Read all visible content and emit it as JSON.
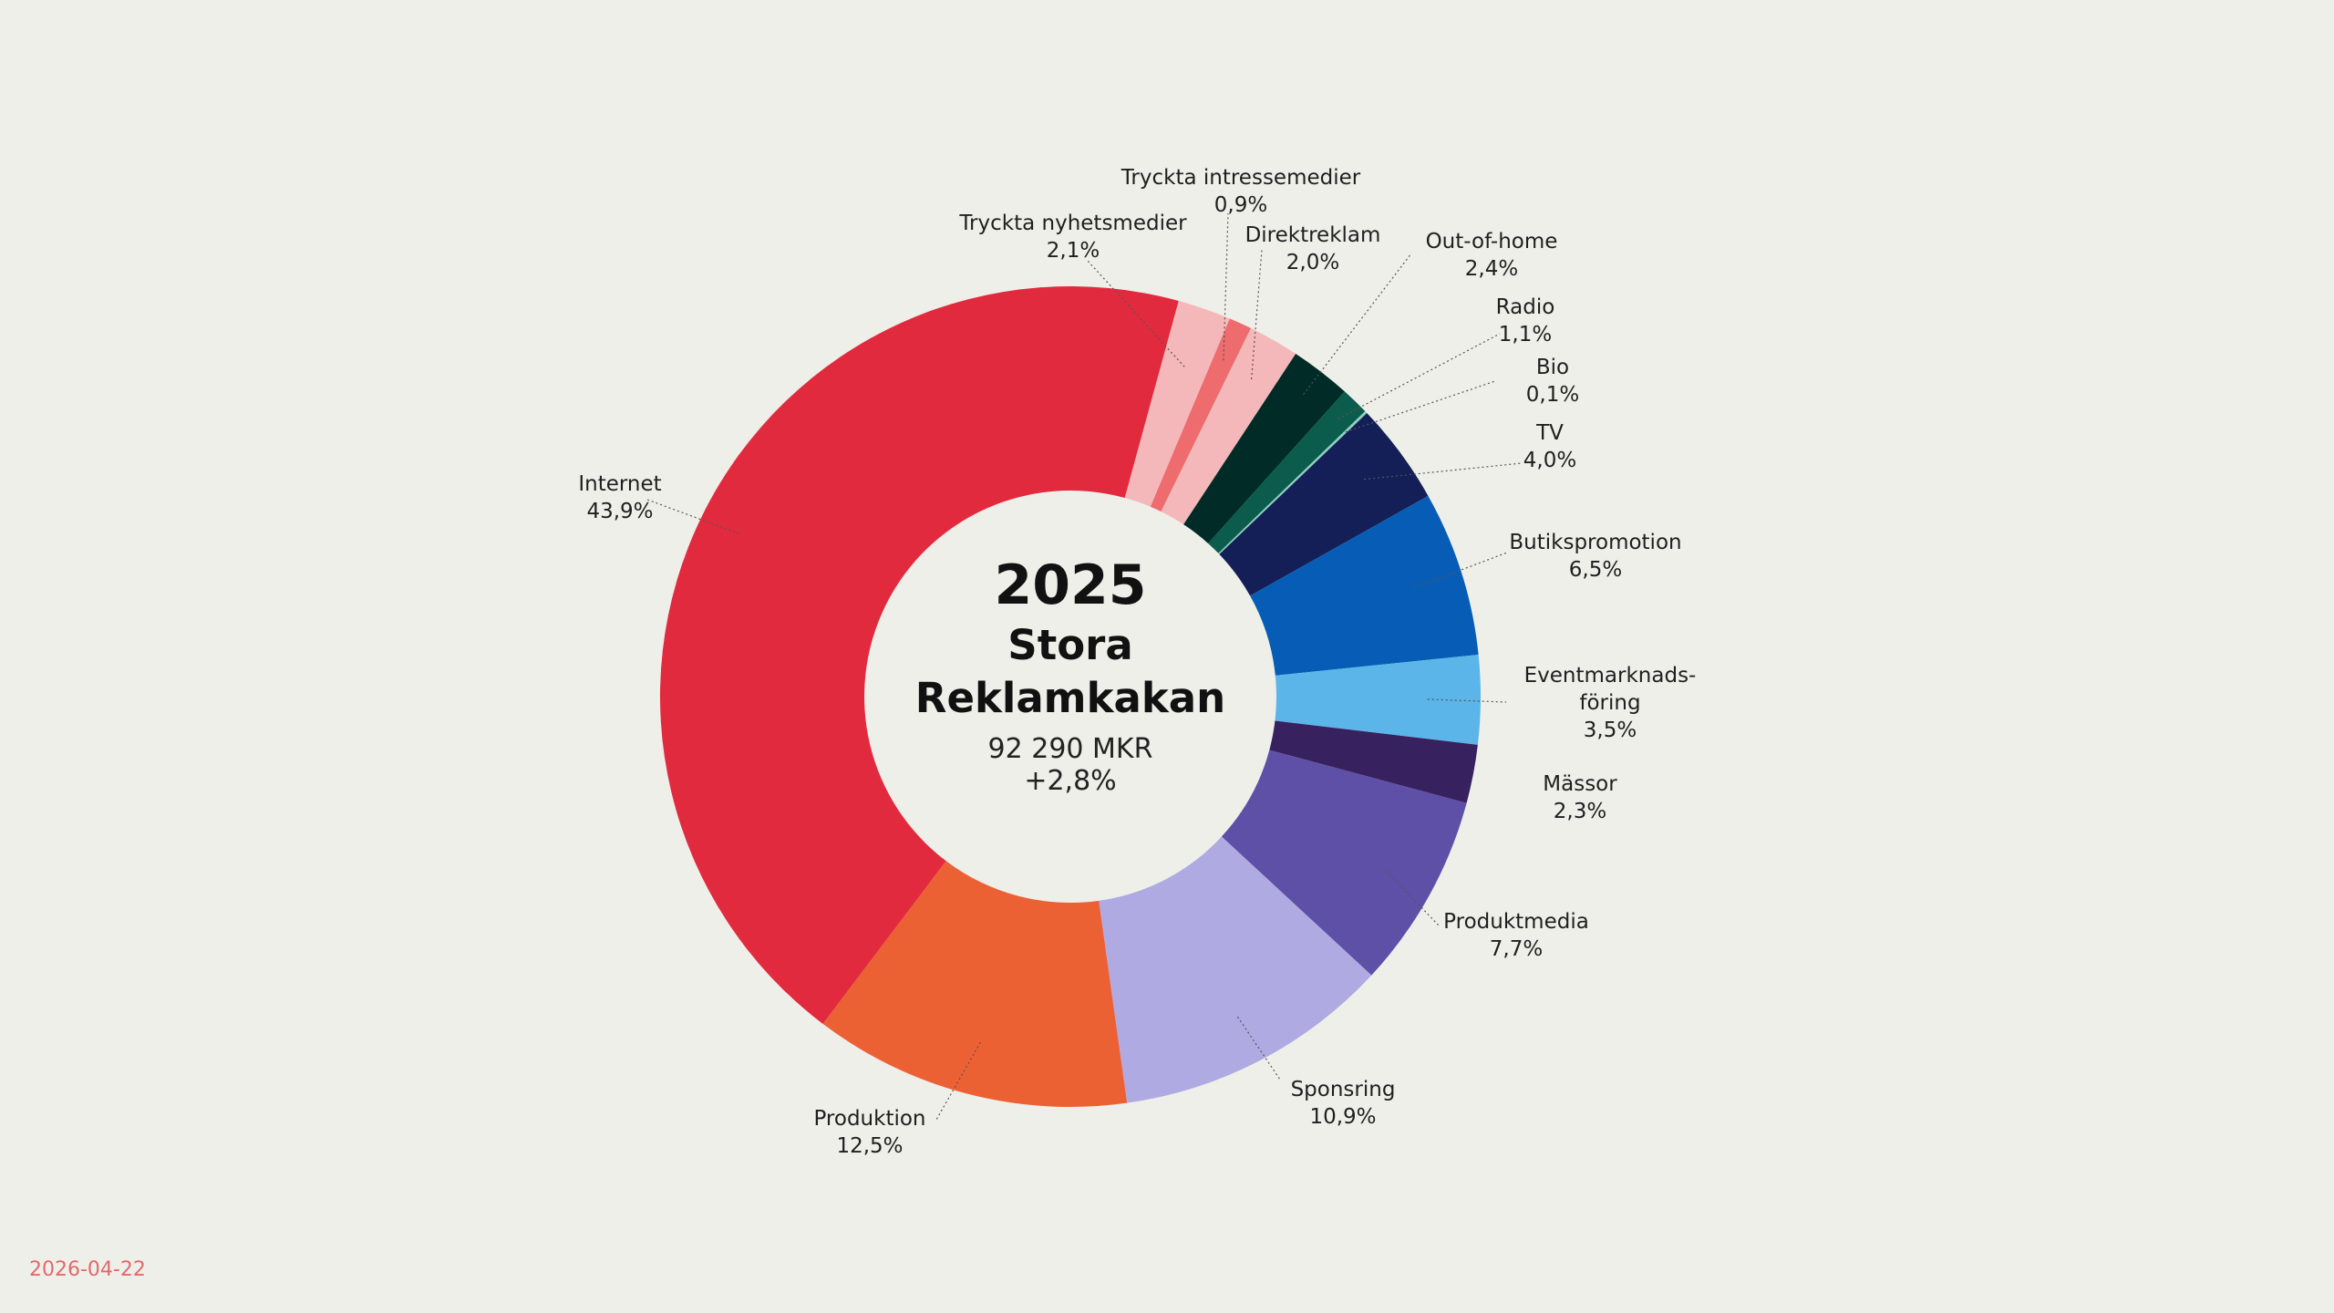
{
  "date": "2026-04-22",
  "center": {
    "year": "2025",
    "title_line1": "Stora",
    "title_line2": "Reklamkakan",
    "total": "92 290 MKR",
    "change": "+2,8%"
  },
  "chart_data": {
    "type": "pie",
    "subtype": "donut",
    "title": "2025 Stora Reklamkakan",
    "total_label": "92 290 MKR",
    "change_label": "+2,8%",
    "unit": "percent of total",
    "slices": [
      {
        "id": "tryckta-nyhetsmedier",
        "label": [
          "Tryckta nyhetsmedier"
        ],
        "value": 2.1,
        "value_label": "2,1%",
        "color": "#f4b8ba"
      },
      {
        "id": "tryckta-intressemedier",
        "label": [
          "Tryckta intressemedier"
        ],
        "value": 0.9,
        "value_label": "0,9%",
        "color": "#ee6b6e"
      },
      {
        "id": "direktreklam",
        "label": [
          "Direktreklam"
        ],
        "value": 2.0,
        "value_label": "2,0%",
        "color": "#f4b8ba"
      },
      {
        "id": "out-of-home",
        "label": [
          "Out-of-home"
        ],
        "value": 2.4,
        "value_label": "2,4%",
        "color": "#002b26"
      },
      {
        "id": "radio",
        "label": [
          "Radio"
        ],
        "value": 1.1,
        "value_label": "1,1%",
        "color": "#0b5c4c"
      },
      {
        "id": "bio",
        "label": [
          "Bio"
        ],
        "value": 0.1,
        "value_label": "0,1%",
        "color": "#8fd0bf"
      },
      {
        "id": "tv",
        "label": [
          "TV"
        ],
        "value": 4.0,
        "value_label": "4,0%",
        "color": "#131f56"
      },
      {
        "id": "butikspromotion",
        "label": [
          "Butikspromotion"
        ],
        "value": 6.5,
        "value_label": "6,5%",
        "color": "#075db5"
      },
      {
        "id": "eventmarknadsforing",
        "label": [
          "Eventmarknads-",
          "föring"
        ],
        "value": 3.5,
        "value_label": "3,5%",
        "color": "#5bb5e8"
      },
      {
        "id": "massor",
        "label": [
          "Mässor"
        ],
        "value": 2.3,
        "value_label": "2,3%",
        "color": "#37215f"
      },
      {
        "id": "produktmedia",
        "label": [
          "Produktmedia"
        ],
        "value": 7.7,
        "value_label": "7,7%",
        "color": "#5e4fa7"
      },
      {
        "id": "sponsring",
        "label": [
          "Sponsring"
        ],
        "value": 10.9,
        "value_label": "10,9%",
        "color": "#b0aae2"
      },
      {
        "id": "produktion",
        "label": [
          "Produktion"
        ],
        "value": 12.5,
        "value_label": "12,5%",
        "color": "#ec6134"
      },
      {
        "id": "internet",
        "label": [
          "Internet"
        ],
        "value": 43.9,
        "value_label": "43,9%",
        "color": "#e22a3e"
      }
    ]
  }
}
